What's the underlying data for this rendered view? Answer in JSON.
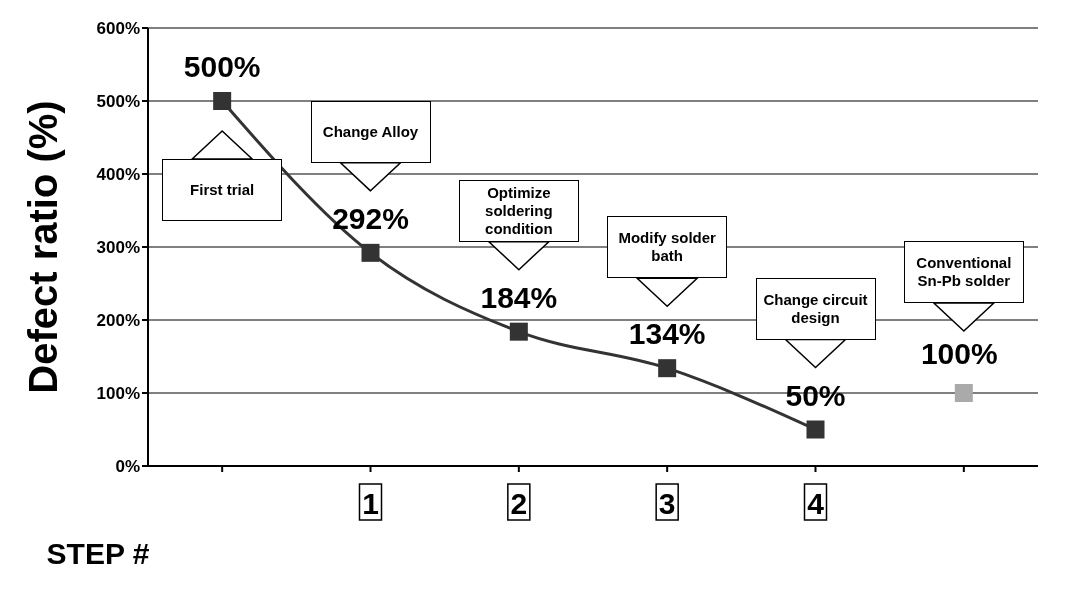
{
  "chart_data": {
    "type": "line",
    "ylabel": "Defect ratio (%)",
    "xlabel": "STEP #",
    "categories": [
      null,
      "1",
      "2",
      "3",
      "4",
      null
    ],
    "series": [
      {
        "type": "line",
        "color": "#333333",
        "values": [
          500,
          292,
          184,
          134,
          50,
          null
        ],
        "value_labels": [
          "500%",
          "292%",
          "184%",
          "134%",
          "50%",
          null
        ]
      },
      {
        "type": "scatter",
        "color": "#aaaaaa",
        "values": [
          null,
          null,
          null,
          null,
          null,
          100
        ],
        "value_labels": [
          null,
          null,
          null,
          null,
          null,
          "100%"
        ]
      }
    ],
    "ylim": [
      0,
      600
    ],
    "yticks": [
      {
        "value": 0,
        "label": "0%"
      },
      {
        "value": 100,
        "label": "100%"
      },
      {
        "value": 200,
        "label": "200%"
      },
      {
        "value": 300,
        "label": "300%"
      },
      {
        "value": 400,
        "label": "400%"
      },
      {
        "value": 500,
        "label": "500%"
      },
      {
        "value": 600,
        "label": "600%"
      }
    ],
    "grid": "y",
    "marker": "square",
    "legend": false,
    "annotations": [
      "First trial",
      "Change Alloy",
      "Optimize soldering condition",
      "Modify solder bath",
      "Change circuit design",
      "Conventional Sn-Pb solder"
    ]
  }
}
